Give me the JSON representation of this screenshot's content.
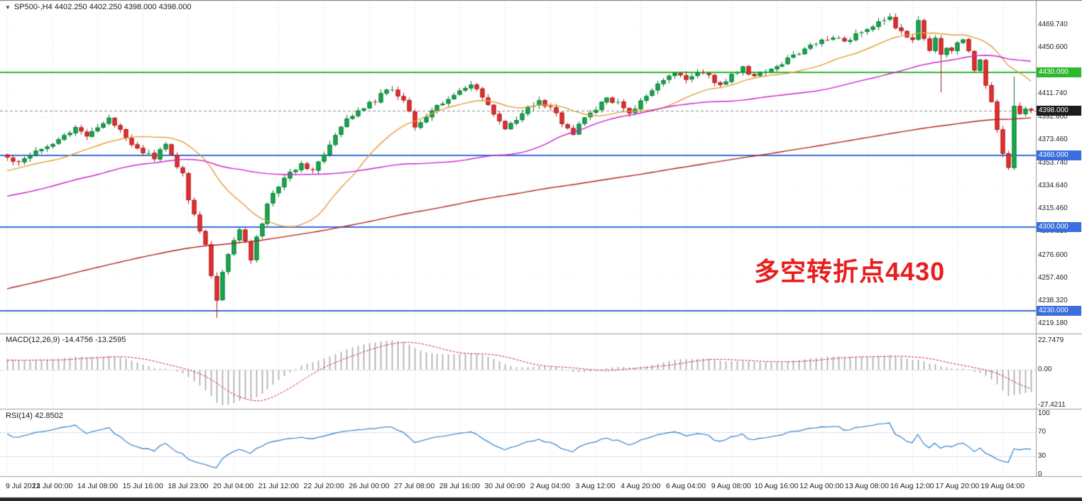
{
  "header": {
    "symbol_info": "SP500-,H4 4402.250 4402.250 4398.000 4398.000"
  },
  "annotation": {
    "text": "多空转折点4430"
  },
  "panels": {
    "macd": {
      "label": "MACD(12,26,9) -14.4756 -13.2595"
    },
    "rsi": {
      "label": "RSI(14) 42.8502"
    }
  },
  "colors": {
    "up": "#17a84e",
    "up_border": "#0c7a36",
    "down": "#e23030",
    "down_border": "#a81c1c",
    "ma_fast": "#e2a03a",
    "ma_mid": "#cc22cc",
    "ma_slow": "#b22222",
    "level_green": "#2db92d",
    "level_blue": "#3a6ede",
    "price_line": "#8a8a8a",
    "tag_current": "#1c1c1c",
    "grid": "#e2e2e2",
    "hgrid": "#efefef",
    "macd_hist": "#a9a9a9",
    "macd_signal": "#d02020",
    "rsi_line": "#2176c7",
    "rsi_levels": "#b9c2d9",
    "annotation": "#e81e1e",
    "divider": "#9a9a9a"
  },
  "price_axis": {
    "labels": [
      "4469.740",
      "4450.600",
      "4411.740",
      "4392.600",
      "4373.460",
      "4353.740",
      "4334.640",
      "4315.460",
      "4296.320",
      "4276.600",
      "4257.460",
      "4238.320",
      "4219.180"
    ],
    "tags": [
      {
        "text": "4430.000",
        "price": 4430.0,
        "type": "level-green"
      },
      {
        "text": "4398.000",
        "price": 4398.0,
        "type": "current"
      },
      {
        "text": "4360.000",
        "price": 4360.0,
        "type": "level-blue"
      },
      {
        "text": "4300.000",
        "price": 4300.0,
        "type": "level-blue"
      },
      {
        "text": "4230.000",
        "price": 4230.0,
        "type": "level-blue"
      }
    ]
  },
  "macd_axis": [
    "22.7479",
    "0.00",
    "-27.4211"
  ],
  "rsi_axis": [
    "100",
    "70",
    "30",
    "0"
  ],
  "time_axis": [
    "9 Jul 2021",
    "13 Jul 00:00",
    "14 Jul 08:00",
    "15 Jul 16:00",
    "18 Jul 23:00",
    "20 Jul 04:00",
    "21 Jul 12:00",
    "22 Jul 20:00",
    "26 Jul 00:00",
    "27 Jul 08:00",
    "28 Jul 16:00",
    "30 Jul 00:00",
    "2 Aug 04:00",
    "3 Aug 12:00",
    "4 Aug 20:00",
    "6 Aug 04:00",
    "9 Aug 08:00",
    "10 Aug 16:00",
    "12 Aug 00:00",
    "13 Aug 08:00",
    "16 Aug 12:00",
    "17 Aug 20:00",
    "19 Aug 04:00"
  ],
  "chart_data": {
    "type": "candlestick",
    "symbol": "SP500-",
    "timeframe": "H4",
    "last_price": 4398.0,
    "visible_price_range": [
      4219.18,
      4469.74
    ],
    "bars": 182,
    "bars_per_gridline": 8,
    "close_anchors": [
      [
        0,
        4358
      ],
      [
        2,
        4355
      ],
      [
        4,
        4362
      ],
      [
        6,
        4367
      ],
      [
        8,
        4371
      ],
      [
        10,
        4377
      ],
      [
        12,
        4382
      ],
      [
        14,
        4378
      ],
      [
        16,
        4384
      ],
      [
        18,
        4390
      ],
      [
        20,
        4382
      ],
      [
        22,
        4371
      ],
      [
        24,
        4363
      ],
      [
        26,
        4358
      ],
      [
        27,
        4365
      ],
      [
        28,
        4368
      ],
      [
        30,
        4352
      ],
      [
        31,
        4344
      ],
      [
        32,
        4324
      ],
      [
        33,
        4310
      ],
      [
        34,
        4296
      ],
      [
        35,
        4286
      ],
      [
        36,
        4260
      ],
      [
        37,
        4239
      ],
      [
        38,
        4262
      ],
      [
        39,
        4276
      ],
      [
        40,
        4288
      ],
      [
        41,
        4300
      ],
      [
        42,
        4288
      ],
      [
        43,
        4272
      ],
      [
        44,
        4290
      ],
      [
        45,
        4304
      ],
      [
        46,
        4318
      ],
      [
        47,
        4328
      ],
      [
        48,
        4335
      ],
      [
        50,
        4346
      ],
      [
        52,
        4353
      ],
      [
        54,
        4349
      ],
      [
        56,
        4360
      ],
      [
        58,
        4376
      ],
      [
        60,
        4390
      ],
      [
        62,
        4399
      ],
      [
        64,
        4403
      ],
      [
        66,
        4411
      ],
      [
        68,
        4416
      ],
      [
        70,
        4407
      ],
      [
        72,
        4386
      ],
      [
        74,
        4393
      ],
      [
        76,
        4401
      ],
      [
        78,
        4409
      ],
      [
        80,
        4413
      ],
      [
        82,
        4419
      ],
      [
        84,
        4409
      ],
      [
        86,
        4396
      ],
      [
        88,
        4381
      ],
      [
        90,
        4391
      ],
      [
        92,
        4399
      ],
      [
        94,
        4405
      ],
      [
        96,
        4401
      ],
      [
        98,
        4387
      ],
      [
        100,
        4379
      ],
      [
        102,
        4391
      ],
      [
        104,
        4399
      ],
      [
        106,
        4409
      ],
      [
        108,
        4403
      ],
      [
        110,
        4396
      ],
      [
        112,
        4405
      ],
      [
        114,
        4415
      ],
      [
        116,
        4423
      ],
      [
        118,
        4429
      ],
      [
        120,
        4424
      ],
      [
        122,
        4430
      ],
      [
        124,
        4426
      ],
      [
        126,
        4419
      ],
      [
        128,
        4428
      ],
      [
        130,
        4433
      ],
      [
        132,
        4426
      ],
      [
        134,
        4431
      ],
      [
        136,
        4435
      ],
      [
        138,
        4441
      ],
      [
        140,
        4447
      ],
      [
        142,
        4452
      ],
      [
        144,
        4457
      ],
      [
        146,
        4461
      ],
      [
        148,
        4455
      ],
      [
        150,
        4462
      ],
      [
        152,
        4467
      ],
      [
        154,
        4471
      ],
      [
        156,
        4475
      ],
      [
        158,
        4463
      ],
      [
        160,
        4455
      ],
      [
        161,
        4473
      ],
      [
        162,
        4459
      ],
      [
        163,
        4449
      ],
      [
        164,
        4457
      ],
      [
        165,
        4444
      ],
      [
        166,
        4452
      ],
      [
        167,
        4447
      ],
      [
        168,
        4453
      ],
      [
        169,
        4457
      ],
      [
        170,
        4449
      ],
      [
        171,
        4431
      ],
      [
        172,
        4440
      ],
      [
        173,
        4420
      ],
      [
        174,
        4405
      ],
      [
        175,
        4382
      ],
      [
        176,
        4362
      ],
      [
        177,
        4352
      ],
      [
        178,
        4400
      ],
      [
        179,
        4394
      ],
      [
        180,
        4400
      ],
      [
        181,
        4398
      ]
    ],
    "wick_overrides": [
      {
        "i": 37,
        "low": 4224.0
      },
      {
        "i": 161,
        "high": 4477.0
      },
      {
        "i": 165,
        "low": 4413.0
      },
      {
        "i": 178,
        "high": 4426.5
      }
    ],
    "horizontal_levels": [
      {
        "price": 4430.0,
        "color": "green"
      },
      {
        "price": 4360.0,
        "color": "blue"
      },
      {
        "price": 4300.0,
        "color": "blue"
      },
      {
        "price": 4230.0,
        "color": "blue"
      }
    ],
    "moving_averages": [
      {
        "period": 20,
        "color_key": "ma_fast"
      },
      {
        "period": 60,
        "color_key": "ma_mid"
      },
      {
        "period": 200,
        "color_key": "ma_slow"
      }
    ],
    "indicators": {
      "macd": {
        "fast": 12,
        "slow": 26,
        "signal": 9,
        "main": -14.4756,
        "signal_value": -13.2595,
        "axis_max": 22.7479,
        "axis_min": -27.4211
      },
      "rsi": {
        "period": 14,
        "value": 42.8502,
        "levels": [
          70,
          30
        ]
      }
    }
  }
}
